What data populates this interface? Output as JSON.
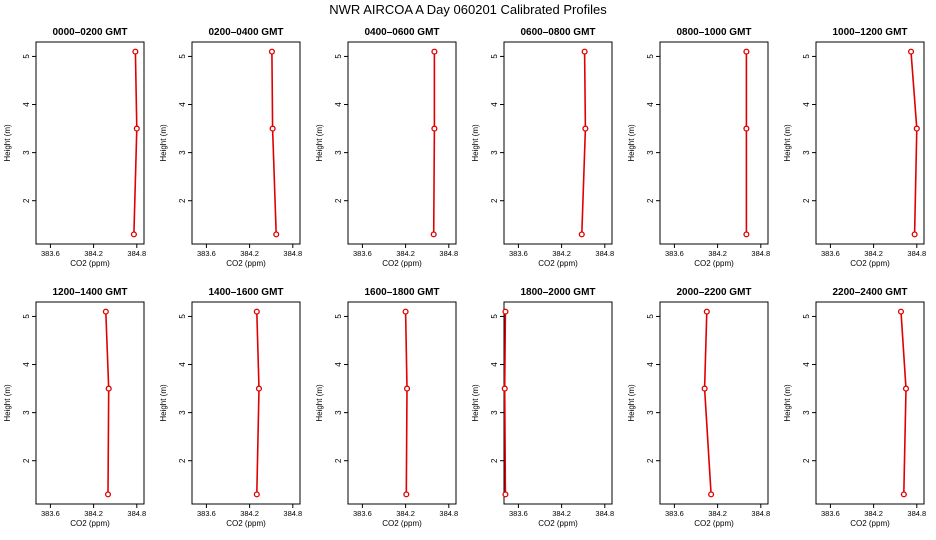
{
  "page": {
    "title": "NWR AIRCOA A  Day 060201  Calibrated Profiles"
  },
  "chart_data": {
    "type": "line",
    "layout": "small-multiples 2x6",
    "xlabel": "CO2 (ppm)",
    "ylabel": "Height (m)",
    "xlim": [
      383.4,
      384.9
    ],
    "ylim": [
      1.1,
      5.3
    ],
    "xticks": [
      383.6,
      384.2,
      384.8
    ],
    "xtick_labels": [
      "383.6",
      "384.2",
      "384.8"
    ],
    "yticks": [
      2,
      3,
      4,
      5
    ],
    "ytick_labels": [
      "2",
      "3",
      "4",
      "5"
    ],
    "colors": {
      "line": "#e00000",
      "points": "#e00000",
      "axes": "#000000"
    },
    "panels": [
      {
        "title": "0000–0200 GMT",
        "x": [
          384.76,
          384.8,
          384.78
        ],
        "y": [
          1.3,
          3.5,
          5.1
        ]
      },
      {
        "title": "0200–0400 GMT",
        "x": [
          384.57,
          384.52,
          384.51
        ],
        "y": [
          1.3,
          3.5,
          5.1
        ]
      },
      {
        "title": "0400–0600 GMT",
        "x": [
          384.59,
          384.6,
          384.6
        ],
        "y": [
          1.3,
          3.5,
          5.1
        ]
      },
      {
        "title": "0600–0800 GMT",
        "x": [
          384.48,
          384.53,
          384.52
        ],
        "y": [
          1.3,
          3.5,
          5.1
        ]
      },
      {
        "title": "0800–1000 GMT",
        "x": [
          384.6,
          384.6,
          384.6
        ],
        "y": [
          1.3,
          3.5,
          5.1
        ]
      },
      {
        "title": "1000–1200 GMT",
        "x": [
          384.77,
          384.8,
          384.72
        ],
        "y": [
          1.3,
          3.5,
          5.1
        ]
      },
      {
        "title": "1200–1400 GMT",
        "x": [
          384.4,
          384.41,
          384.37
        ],
        "y": [
          1.3,
          3.5,
          5.1
        ]
      },
      {
        "title": "1400–1600 GMT",
        "x": [
          384.3,
          384.33,
          384.3
        ],
        "y": [
          1.3,
          3.5,
          5.1
        ]
      },
      {
        "title": "1600–1800 GMT",
        "x": [
          384.21,
          384.22,
          384.2
        ],
        "y": [
          1.3,
          3.5,
          5.1
        ]
      },
      {
        "title": "1800–2000 GMT",
        "x": [
          383.42,
          383.41,
          383.42
        ],
        "y": [
          1.3,
          3.5,
          5.1
        ]
      },
      {
        "title": "2000–2200 GMT",
        "x": [
          384.11,
          384.02,
          384.05
        ],
        "y": [
          1.3,
          3.5,
          5.1
        ]
      },
      {
        "title": "2200–2400 GMT",
        "x": [
          384.62,
          384.65,
          384.58
        ],
        "y": [
          1.3,
          3.5,
          5.1
        ]
      }
    ]
  }
}
